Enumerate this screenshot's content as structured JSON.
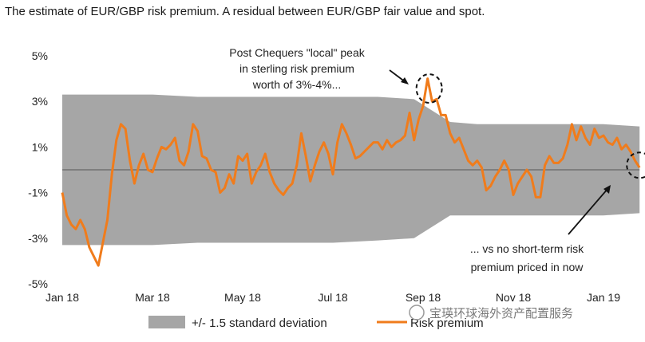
{
  "title": "The estimate of EUR/GBP risk premium. A residual between EUR/GBP fair value and spot.",
  "watermark": "宝瑛环球海外资产配置服务",
  "colors": {
    "band": "#a6a6a6",
    "line": "#f07c1c",
    "zero": "#555555"
  },
  "chart_data": {
    "type": "line",
    "title": "The estimate of EUR/GBP risk premium. A residual between EUR/GBP fair value and spot.",
    "xlabel": "",
    "ylabel": "",
    "ylim": [
      -5,
      5
    ],
    "y_ticks": [
      "5%",
      "3%",
      "1%",
      "-1%",
      "-3%",
      "-5%"
    ],
    "y_tick_values": [
      5,
      3,
      1,
      -1,
      -3,
      -5
    ],
    "x_ticks": [
      "Jan 18",
      "Mar 18",
      "May 18",
      "Jul 18",
      "Sep 18",
      "Nov 18",
      "Jan 19"
    ],
    "x_tick_months": [
      0,
      2,
      4,
      6,
      8,
      10,
      12
    ],
    "grid": false,
    "legend_position": "bottom",
    "series": [
      {
        "name": "+/- 1.5 standard deviation",
        "kind": "band",
        "x": [
          0.0,
          1.0,
          2.0,
          3.0,
          4.0,
          5.0,
          6.0,
          7.0,
          7.8,
          8.6,
          9.2,
          10.0,
          11.0,
          12.0,
          12.8
        ],
        "upper": [
          3.3,
          3.3,
          3.3,
          3.2,
          3.2,
          3.2,
          3.2,
          3.2,
          3.1,
          2.1,
          2.0,
          2.0,
          2.0,
          2.0,
          1.9
        ],
        "lower": [
          -3.3,
          -3.3,
          -3.3,
          -3.2,
          -3.2,
          -3.2,
          -3.2,
          -3.1,
          -3.0,
          -2.0,
          -2.0,
          -2.0,
          -2.0,
          -2.0,
          -1.9
        ]
      },
      {
        "name": "Risk premium",
        "kind": "line",
        "x": [
          0.0,
          0.1,
          0.2,
          0.3,
          0.4,
          0.5,
          0.6,
          0.7,
          0.8,
          0.9,
          1.0,
          1.1,
          1.2,
          1.3,
          1.4,
          1.5,
          1.6,
          1.7,
          1.8,
          1.9,
          2.0,
          2.1,
          2.2,
          2.3,
          2.4,
          2.5,
          2.6,
          2.7,
          2.8,
          2.9,
          3.0,
          3.1,
          3.2,
          3.3,
          3.4,
          3.5,
          3.6,
          3.7,
          3.8,
          3.9,
          4.0,
          4.1,
          4.2,
          4.3,
          4.4,
          4.5,
          4.6,
          4.7,
          4.8,
          4.9,
          5.0,
          5.1,
          5.2,
          5.3,
          5.4,
          5.5,
          5.6,
          5.7,
          5.8,
          5.9,
          6.0,
          6.1,
          6.2,
          6.3,
          6.4,
          6.5,
          6.6,
          6.7,
          6.8,
          6.9,
          7.0,
          7.1,
          7.2,
          7.3,
          7.4,
          7.5,
          7.6,
          7.7,
          7.8,
          7.9,
          8.0,
          8.1,
          8.2,
          8.3,
          8.4,
          8.5,
          8.6,
          8.7,
          8.8,
          8.9,
          9.0,
          9.1,
          9.2,
          9.3,
          9.4,
          9.5,
          9.6,
          9.7,
          9.8,
          9.9,
          10.0,
          10.1,
          10.2,
          10.3,
          10.4,
          10.5,
          10.6,
          10.7,
          10.8,
          10.9,
          11.0,
          11.1,
          11.2,
          11.3,
          11.4,
          11.5,
          11.6,
          11.7,
          11.8,
          11.9,
          12.0,
          12.1,
          12.2,
          12.3,
          12.4,
          12.5,
          12.6,
          12.7,
          12.8
        ],
        "values": [
          -1.0,
          -2.0,
          -2.4,
          -2.6,
          -2.2,
          -2.6,
          -3.4,
          -3.8,
          -4.2,
          -3.2,
          -2.2,
          -0.2,
          1.3,
          2.0,
          1.8,
          0.4,
          -0.6,
          0.2,
          0.7,
          0.0,
          -0.1,
          0.5,
          1.0,
          0.9,
          1.1,
          1.4,
          0.4,
          0.2,
          0.8,
          2.0,
          1.7,
          0.6,
          0.5,
          0.0,
          -0.1,
          -1.0,
          -0.8,
          -0.2,
          -0.6,
          0.6,
          0.4,
          0.7,
          -0.6,
          -0.1,
          0.2,
          0.7,
          -0.1,
          -0.6,
          -0.9,
          -1.1,
          -0.8,
          -0.6,
          0.2,
          1.6,
          0.6,
          -0.5,
          0.2,
          0.8,
          1.2,
          0.7,
          -0.2,
          1.2,
          2.0,
          1.6,
          1.1,
          0.5,
          0.6,
          0.8,
          1.0,
          1.2,
          1.2,
          0.9,
          1.3,
          1.0,
          1.2,
          1.3,
          1.5,
          2.5,
          1.3,
          2.2,
          2.8,
          4.0,
          3.0,
          3.1,
          2.4,
          2.4,
          1.6,
          1.2,
          1.4,
          0.9,
          0.4,
          0.2,
          0.4,
          0.1,
          -0.9,
          -0.7,
          -0.3,
          0.0,
          0.4,
          0.0,
          -1.1,
          -0.6,
          -0.3,
          0.0,
          -0.3,
          -1.2,
          -1.2,
          0.2,
          0.6,
          0.3,
          0.3,
          0.5,
          1.1,
          2.0,
          1.3,
          1.9,
          1.4,
          1.1,
          1.8,
          1.4,
          1.5,
          1.2,
          1.1,
          1.4,
          0.9,
          1.1,
          0.8,
          0.4,
          0.1
        ]
      }
    ],
    "annotations": [
      {
        "lines": [
          "Post Chequers \"local\" peak",
          "in sterling risk premium",
          "worth of 3%-4%..."
        ],
        "target_x": 8.1,
        "target_y": 3.6
      },
      {
        "lines": [
          "... vs no short-term risk",
          "premium priced in now"
        ],
        "target_x": 12.8,
        "target_y": 0.2
      }
    ]
  }
}
